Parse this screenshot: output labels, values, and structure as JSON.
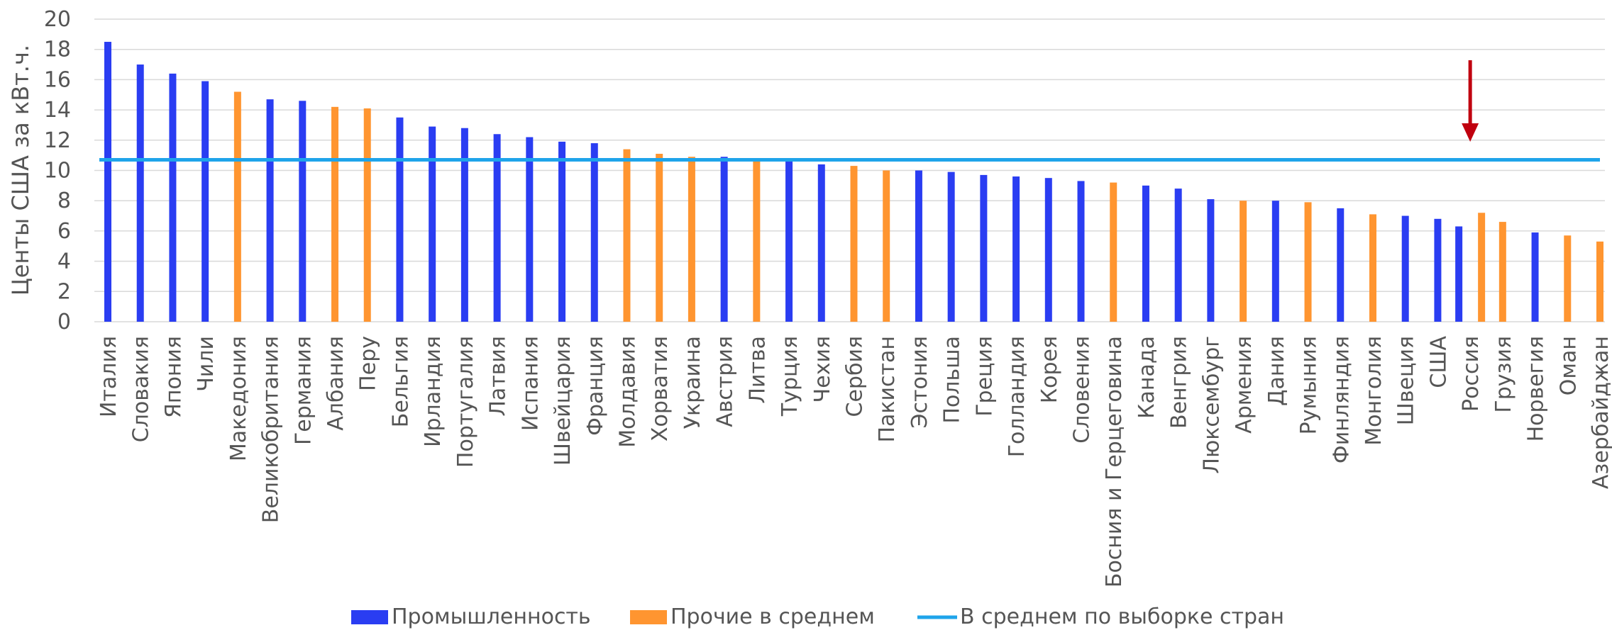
{
  "chart_data": {
    "type": "bar",
    "ylabel": "Центы США за кВт.ч.",
    "ylim": [
      0,
      20
    ],
    "yticks": [
      0,
      2,
      4,
      6,
      8,
      10,
      12,
      14,
      16,
      18,
      20
    ],
    "grid": true,
    "legend_position": "bottom",
    "average_value": 10.7,
    "colors": {
      "industry": "#2a3df2",
      "other": "#ff9530",
      "average": "#1fa4ea",
      "marker": "#c0000f"
    },
    "series": [
      {
        "name": "Промышленность",
        "key": "industry",
        "color": "#2a3df2"
      },
      {
        "name": "Прочие в среднем",
        "key": "other",
        "color": "#ff9530"
      }
    ],
    "average_series": {
      "name": "В среднем по выборке стран",
      "color": "#1fa4ea"
    },
    "highlight": {
      "category": "Россия",
      "icon": "red-down-arrow"
    },
    "categories": [
      "Италия",
      "Словакия",
      "Япония",
      "Чили",
      "Македония",
      "Великобритания",
      "Германия",
      "Албания",
      "Перу",
      "Бельгия",
      "Ирландия",
      "Португалия",
      "Латвия",
      "Испания",
      "Швейцария",
      "Франция",
      "Молдавия",
      "Хорватия",
      "Украина",
      "Австрия",
      "Литва",
      "Турция",
      "Чехия",
      "Сербия",
      "Пакистан",
      "Эстония",
      "Польша",
      "Греция",
      "Голландия",
      "Корея",
      "Словения",
      "Босния и Герцеговина",
      "Канада",
      "Венгрия",
      "Люксембург",
      "Армения",
      "Дания",
      "Румыния",
      "Финляндия",
      "Монголия",
      "Швеция",
      "США",
      "Россия",
      "Грузия",
      "Норвегия",
      "Оман",
      "Азербайджан"
    ],
    "values": {
      "industry": [
        18.5,
        17.0,
        16.4,
        15.9,
        null,
        14.7,
        14.6,
        null,
        null,
        13.5,
        12.9,
        12.8,
        12.4,
        12.2,
        11.9,
        11.8,
        null,
        null,
        null,
        10.9,
        null,
        10.6,
        10.4,
        null,
        null,
        10.0,
        9.9,
        9.7,
        9.6,
        9.5,
        9.3,
        null,
        9.0,
        8.8,
        8.1,
        null,
        8.0,
        null,
        7.5,
        null,
        7.0,
        6.8,
        6.3,
        null,
        5.9,
        null,
        null
      ],
      "other": [
        null,
        null,
        null,
        null,
        15.2,
        null,
        null,
        14.2,
        14.1,
        null,
        null,
        null,
        null,
        null,
        null,
        null,
        11.4,
        11.1,
        10.9,
        null,
        10.7,
        null,
        null,
        10.3,
        10.0,
        null,
        null,
        null,
        null,
        null,
        null,
        9.2,
        null,
        null,
        null,
        8.0,
        null,
        7.9,
        null,
        7.1,
        null,
        null,
        7.2,
        6.6,
        null,
        5.7,
        5.3
      ]
    }
  }
}
